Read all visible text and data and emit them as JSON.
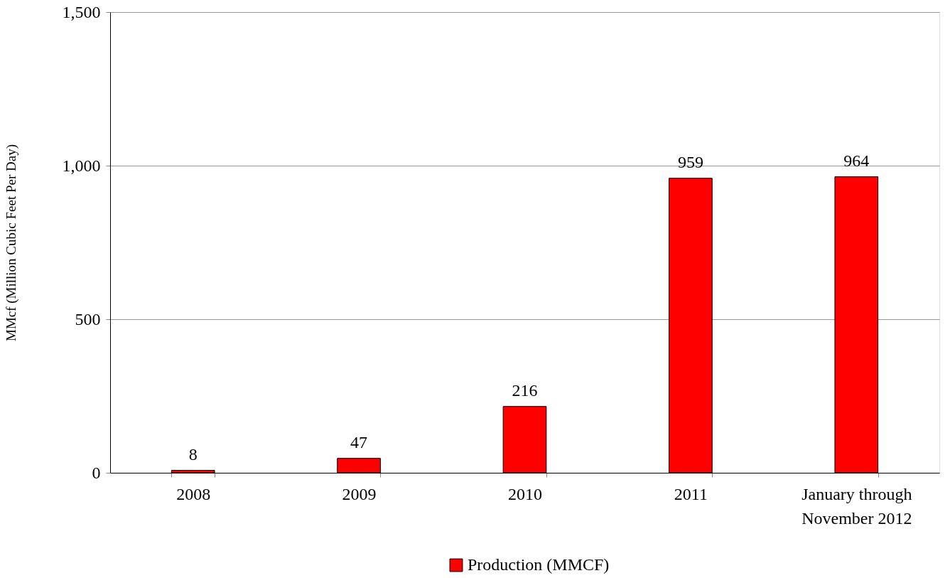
{
  "chart_data": {
    "type": "bar",
    "ylabel": "MMcf (Million Cubic Feet Per Day)",
    "categories": [
      "2008",
      "2009",
      "2010",
      "2011",
      "January through November 2012"
    ],
    "series": [
      {
        "name": "Production (MMCF)",
        "color": "#ff0000",
        "values": [
          8,
          47,
          216,
          959,
          964
        ]
      }
    ],
    "ylim": [
      0,
      1500
    ],
    "yticks": [
      0,
      500,
      {
        "value": 1000,
        "label": "1,000"
      },
      {
        "value": 1500,
        "label": "1,500"
      }
    ],
    "grid": "y",
    "legend": "bottom",
    "data_labels": true
  }
}
